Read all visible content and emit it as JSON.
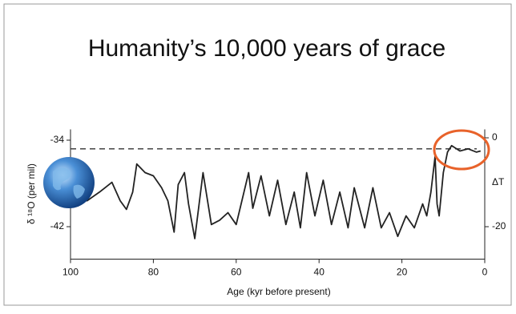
{
  "chart_data": {
    "type": "line",
    "title": "Humanity’s 10,000 years of grace",
    "xlabel": "Age (kyr before present)",
    "ylabel": "δ ¹⁸O (per mil)",
    "y2label": "ΔT",
    "color": "#222222",
    "x": [
      100,
      96,
      93,
      90,
      88,
      86.5,
      85,
      84,
      82,
      80,
      78,
      76.5,
      75,
      74,
      72.5,
      71.5,
      70,
      68,
      66,
      64,
      62,
      60,
      57,
      56,
      54,
      52,
      50,
      48,
      46,
      44.5,
      43,
      41,
      39,
      37,
      35,
      33,
      31.5,
      29,
      27,
      25,
      23,
      21,
      19,
      17,
      15,
      14,
      13,
      12,
      11.5,
      11,
      10,
      9,
      8,
      6,
      4,
      2,
      1
    ],
    "values": [
      -39.2,
      -39.6,
      -38.8,
      -37.9,
      -39.6,
      -40.4,
      -38.8,
      -36.2,
      -37.0,
      -37.3,
      -38.4,
      -39.6,
      -42.5,
      -38.1,
      -37.0,
      -39.9,
      -43.1,
      -37.0,
      -41.8,
      -41.4,
      -40.7,
      -41.8,
      -37.0,
      -40.3,
      -37.3,
      -41.0,
      -37.7,
      -41.8,
      -38.8,
      -42.1,
      -37.0,
      -41.0,
      -37.7,
      -41.8,
      -38.8,
      -42.1,
      -38.4,
      -42.1,
      -38.4,
      -42.1,
      -40.7,
      -42.9,
      -41.0,
      -42.1,
      -39.9,
      -41.0,
      -38.8,
      -35.5,
      -39.9,
      -41.0,
      -37.0,
      -35.1,
      -34.5,
      -35.0,
      -34.8,
      -35.1,
      -35.0
    ],
    "xlim": [
      100,
      0
    ],
    "xticks": [
      100,
      80,
      60,
      40,
      20,
      0
    ],
    "ylim": [
      -45,
      -33
    ],
    "yticks": [
      -34,
      -42
    ],
    "y2lim": [
      -27.3,
      1.9
    ],
    "y2ticks": [
      0,
      -20
    ],
    "reference_line": -34.8
  }
}
